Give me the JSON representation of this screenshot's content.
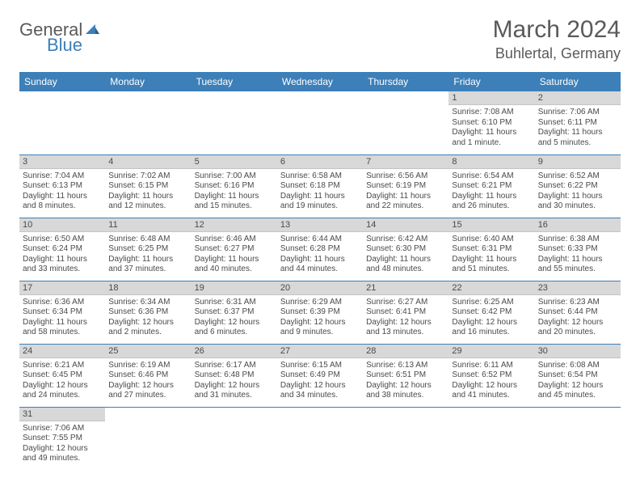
{
  "logo": {
    "text1": "General",
    "text2": "Blue"
  },
  "title": "March 2024",
  "location": "Buhlertal, Germany",
  "colors": {
    "header_bg": "#3d7fb8",
    "daynum_bg": "#d8d8d8",
    "text": "#4a4a4a"
  },
  "weekdays": [
    "Sunday",
    "Monday",
    "Tuesday",
    "Wednesday",
    "Thursday",
    "Friday",
    "Saturday"
  ],
  "weeks": [
    [
      null,
      null,
      null,
      null,
      null,
      {
        "n": "1",
        "sr": "Sunrise: 7:08 AM",
        "ss": "Sunset: 6:10 PM",
        "dl": "Daylight: 11 hours and 1 minute."
      },
      {
        "n": "2",
        "sr": "Sunrise: 7:06 AM",
        "ss": "Sunset: 6:11 PM",
        "dl": "Daylight: 11 hours and 5 minutes."
      }
    ],
    [
      {
        "n": "3",
        "sr": "Sunrise: 7:04 AM",
        "ss": "Sunset: 6:13 PM",
        "dl": "Daylight: 11 hours and 8 minutes."
      },
      {
        "n": "4",
        "sr": "Sunrise: 7:02 AM",
        "ss": "Sunset: 6:15 PM",
        "dl": "Daylight: 11 hours and 12 minutes."
      },
      {
        "n": "5",
        "sr": "Sunrise: 7:00 AM",
        "ss": "Sunset: 6:16 PM",
        "dl": "Daylight: 11 hours and 15 minutes."
      },
      {
        "n": "6",
        "sr": "Sunrise: 6:58 AM",
        "ss": "Sunset: 6:18 PM",
        "dl": "Daylight: 11 hours and 19 minutes."
      },
      {
        "n": "7",
        "sr": "Sunrise: 6:56 AM",
        "ss": "Sunset: 6:19 PM",
        "dl": "Daylight: 11 hours and 22 minutes."
      },
      {
        "n": "8",
        "sr": "Sunrise: 6:54 AM",
        "ss": "Sunset: 6:21 PM",
        "dl": "Daylight: 11 hours and 26 minutes."
      },
      {
        "n": "9",
        "sr": "Sunrise: 6:52 AM",
        "ss": "Sunset: 6:22 PM",
        "dl": "Daylight: 11 hours and 30 minutes."
      }
    ],
    [
      {
        "n": "10",
        "sr": "Sunrise: 6:50 AM",
        "ss": "Sunset: 6:24 PM",
        "dl": "Daylight: 11 hours and 33 minutes."
      },
      {
        "n": "11",
        "sr": "Sunrise: 6:48 AM",
        "ss": "Sunset: 6:25 PM",
        "dl": "Daylight: 11 hours and 37 minutes."
      },
      {
        "n": "12",
        "sr": "Sunrise: 6:46 AM",
        "ss": "Sunset: 6:27 PM",
        "dl": "Daylight: 11 hours and 40 minutes."
      },
      {
        "n": "13",
        "sr": "Sunrise: 6:44 AM",
        "ss": "Sunset: 6:28 PM",
        "dl": "Daylight: 11 hours and 44 minutes."
      },
      {
        "n": "14",
        "sr": "Sunrise: 6:42 AM",
        "ss": "Sunset: 6:30 PM",
        "dl": "Daylight: 11 hours and 48 minutes."
      },
      {
        "n": "15",
        "sr": "Sunrise: 6:40 AM",
        "ss": "Sunset: 6:31 PM",
        "dl": "Daylight: 11 hours and 51 minutes."
      },
      {
        "n": "16",
        "sr": "Sunrise: 6:38 AM",
        "ss": "Sunset: 6:33 PM",
        "dl": "Daylight: 11 hours and 55 minutes."
      }
    ],
    [
      {
        "n": "17",
        "sr": "Sunrise: 6:36 AM",
        "ss": "Sunset: 6:34 PM",
        "dl": "Daylight: 11 hours and 58 minutes."
      },
      {
        "n": "18",
        "sr": "Sunrise: 6:34 AM",
        "ss": "Sunset: 6:36 PM",
        "dl": "Daylight: 12 hours and 2 minutes."
      },
      {
        "n": "19",
        "sr": "Sunrise: 6:31 AM",
        "ss": "Sunset: 6:37 PM",
        "dl": "Daylight: 12 hours and 6 minutes."
      },
      {
        "n": "20",
        "sr": "Sunrise: 6:29 AM",
        "ss": "Sunset: 6:39 PM",
        "dl": "Daylight: 12 hours and 9 minutes."
      },
      {
        "n": "21",
        "sr": "Sunrise: 6:27 AM",
        "ss": "Sunset: 6:41 PM",
        "dl": "Daylight: 12 hours and 13 minutes."
      },
      {
        "n": "22",
        "sr": "Sunrise: 6:25 AM",
        "ss": "Sunset: 6:42 PM",
        "dl": "Daylight: 12 hours and 16 minutes."
      },
      {
        "n": "23",
        "sr": "Sunrise: 6:23 AM",
        "ss": "Sunset: 6:44 PM",
        "dl": "Daylight: 12 hours and 20 minutes."
      }
    ],
    [
      {
        "n": "24",
        "sr": "Sunrise: 6:21 AM",
        "ss": "Sunset: 6:45 PM",
        "dl": "Daylight: 12 hours and 24 minutes."
      },
      {
        "n": "25",
        "sr": "Sunrise: 6:19 AM",
        "ss": "Sunset: 6:46 PM",
        "dl": "Daylight: 12 hours and 27 minutes."
      },
      {
        "n": "26",
        "sr": "Sunrise: 6:17 AM",
        "ss": "Sunset: 6:48 PM",
        "dl": "Daylight: 12 hours and 31 minutes."
      },
      {
        "n": "27",
        "sr": "Sunrise: 6:15 AM",
        "ss": "Sunset: 6:49 PM",
        "dl": "Daylight: 12 hours and 34 minutes."
      },
      {
        "n": "28",
        "sr": "Sunrise: 6:13 AM",
        "ss": "Sunset: 6:51 PM",
        "dl": "Daylight: 12 hours and 38 minutes."
      },
      {
        "n": "29",
        "sr": "Sunrise: 6:11 AM",
        "ss": "Sunset: 6:52 PM",
        "dl": "Daylight: 12 hours and 41 minutes."
      },
      {
        "n": "30",
        "sr": "Sunrise: 6:08 AM",
        "ss": "Sunset: 6:54 PM",
        "dl": "Daylight: 12 hours and 45 minutes."
      }
    ],
    [
      {
        "n": "31",
        "sr": "Sunrise: 7:06 AM",
        "ss": "Sunset: 7:55 PM",
        "dl": "Daylight: 12 hours and 49 minutes."
      },
      null,
      null,
      null,
      null,
      null,
      null
    ]
  ]
}
